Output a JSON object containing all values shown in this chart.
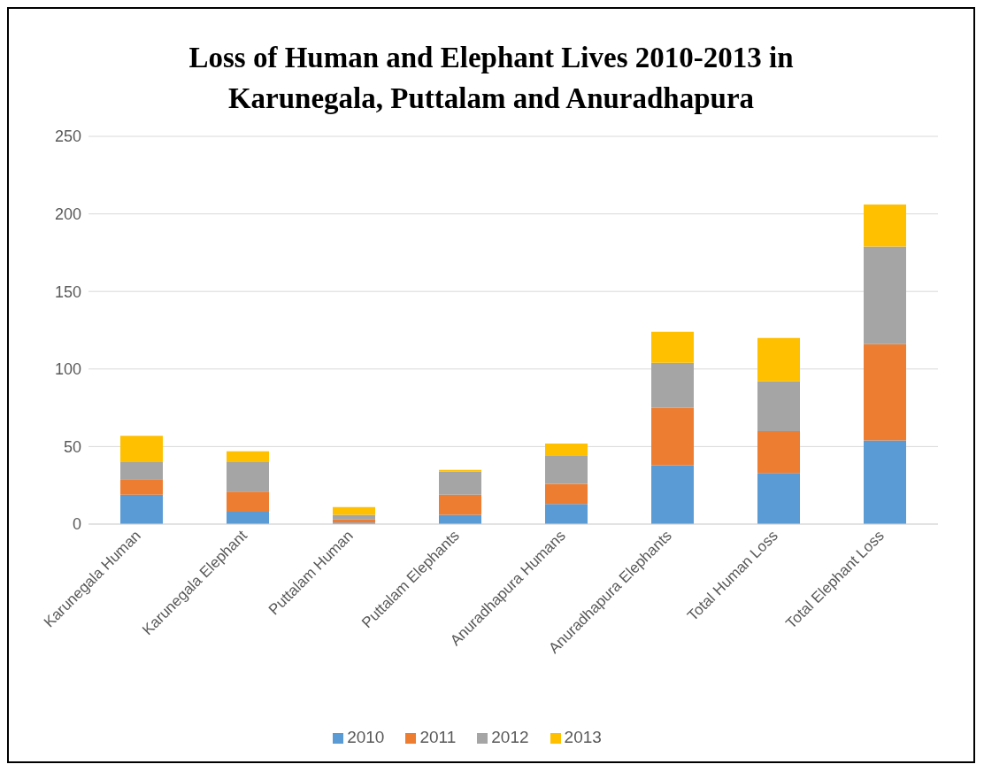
{
  "chart_data": {
    "type": "bar",
    "title": "Loss of Human and Elephant Lives 2010-2013 in Karunegala, Puttalam and Anuradhapura",
    "categories": [
      "Karunegala Human",
      "Karunegala Elephant",
      "Puttalam Human",
      "Puttalam Elephants",
      "Anuradhapura Humans",
      "Anuradhapura Elephants",
      "Total Human Loss",
      "Total Elephant Loss"
    ],
    "stacked": true,
    "series": [
      {
        "name": "2010",
        "color": "#5b9bd5",
        "values": [
          19,
          8,
          1,
          6,
          13,
          38,
          33,
          54
        ]
      },
      {
        "name": "2011",
        "color": "#ed7d31",
        "values": [
          10,
          13,
          2,
          13,
          13,
          37,
          27,
          62
        ]
      },
      {
        "name": "2012",
        "color": "#a5a5a5",
        "values": [
          11,
          19,
          3,
          15,
          18,
          29,
          32,
          63
        ]
      },
      {
        "name": "2013",
        "color": "#ffc000",
        "values": [
          17,
          7,
          5,
          1,
          8,
          20,
          28,
          27
        ]
      }
    ],
    "ylim": [
      0,
      250
    ],
    "yticks": [
      0,
      50,
      100,
      150,
      200,
      250
    ],
    "grid": "y",
    "legend": "bottom"
  }
}
